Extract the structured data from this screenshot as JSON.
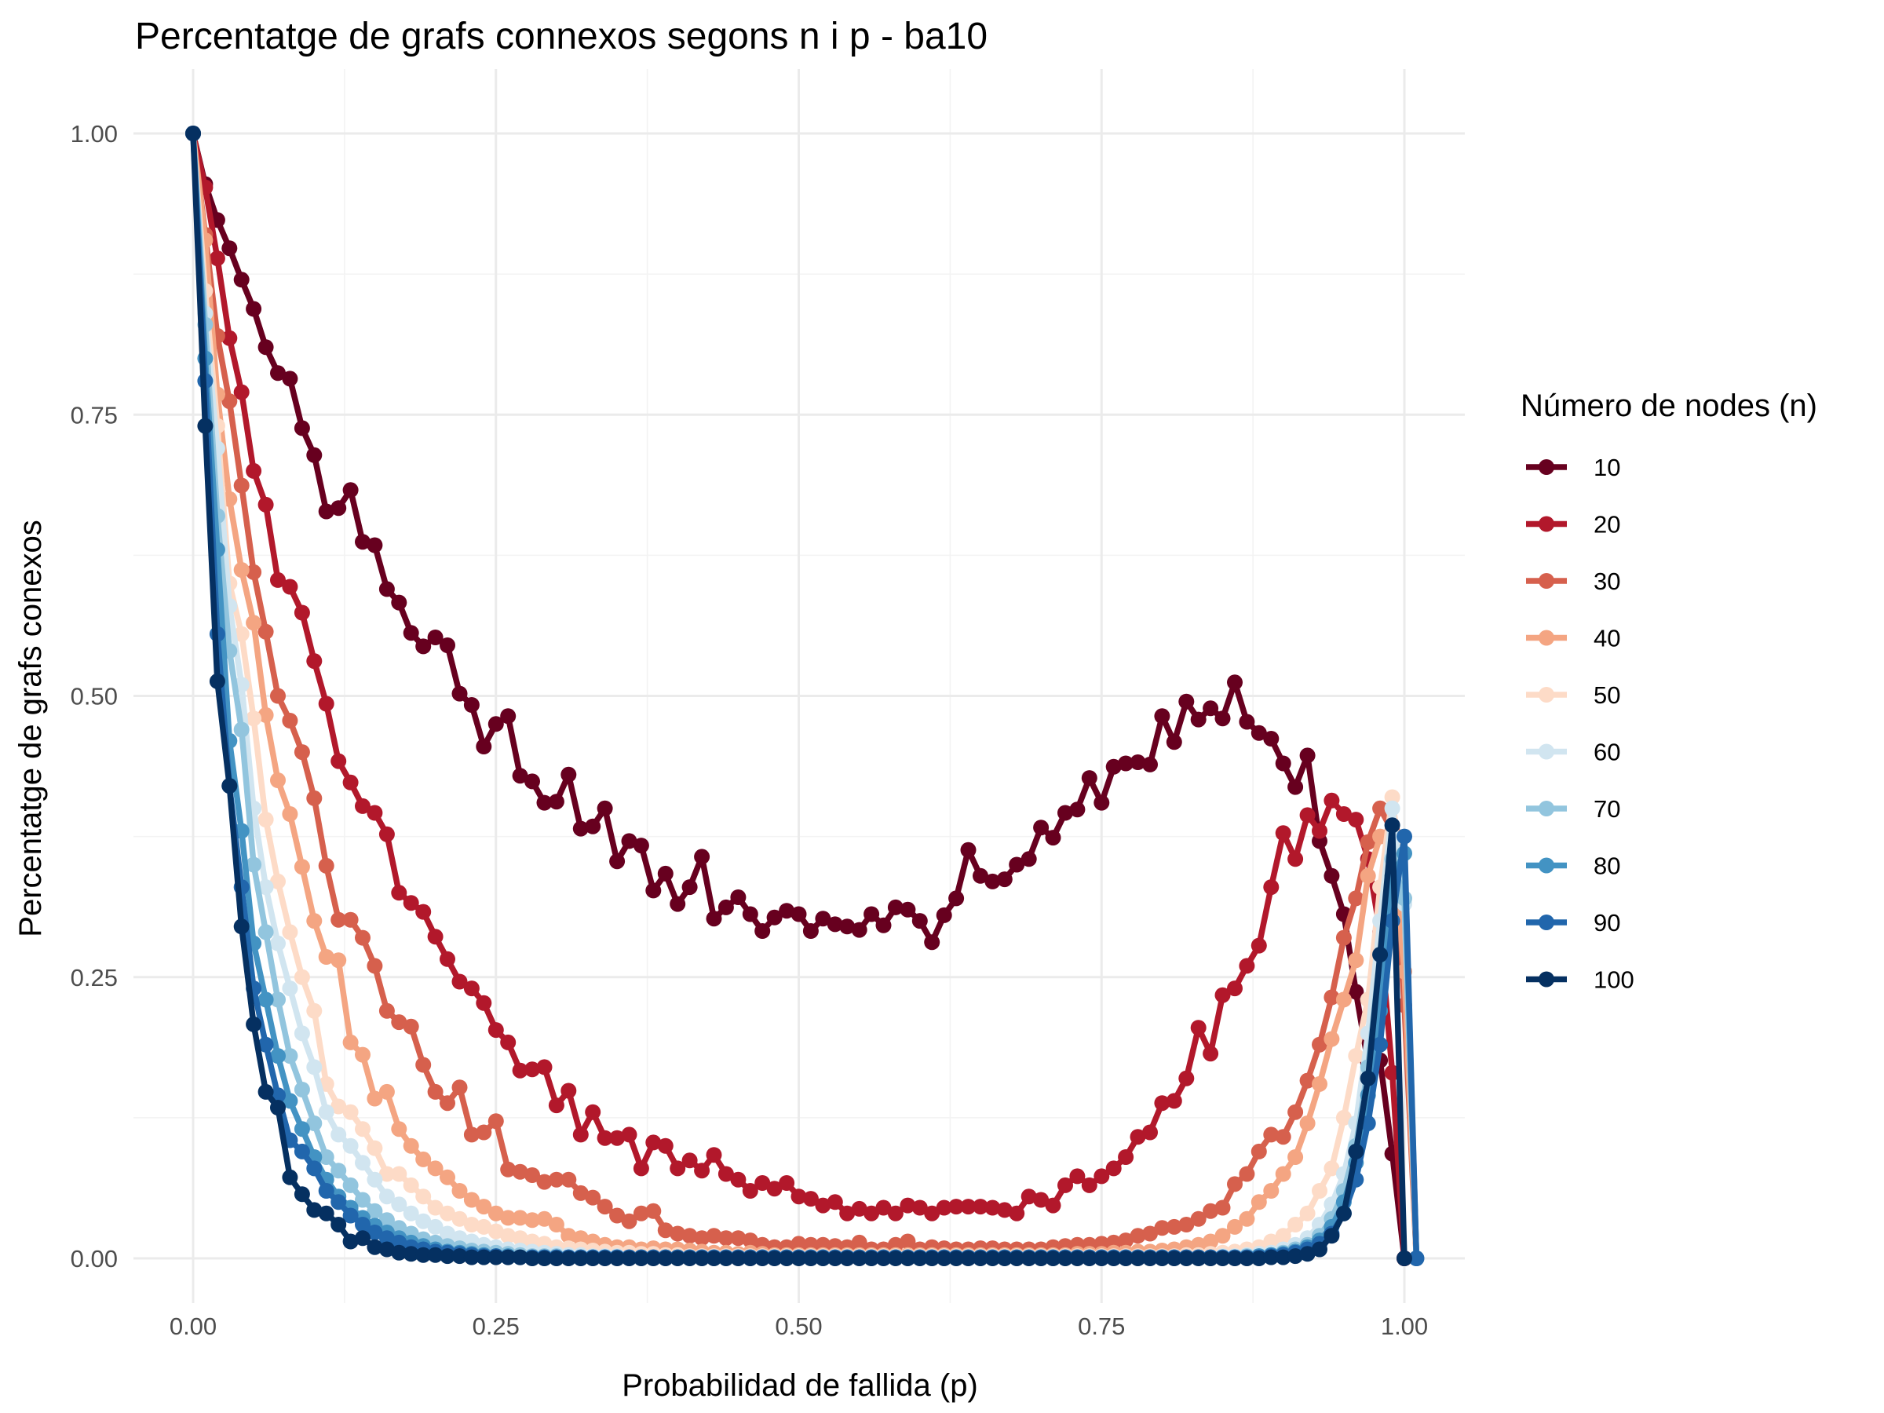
{
  "chart_data": {
    "type": "line",
    "title": "Percentatge de grafs connexos segons n i p - ba10",
    "xlabel": "Probabilidad de fallida (p)",
    "ylabel": "Percentatge de grafs conexos",
    "xlim": [
      0,
      1
    ],
    "ylim": [
      0,
      1
    ],
    "x_ticks": [
      "0.00",
      "0.25",
      "0.50",
      "0.75",
      "1.00"
    ],
    "y_ticks": [
      "0.00",
      "0.25",
      "0.50",
      "0.75",
      "1.00"
    ],
    "grid": true,
    "legend": {
      "title": "Número de nodes (n)",
      "position": "right"
    },
    "x_step": 0.01,
    "series": [
      {
        "name": "10",
        "color": "#67001f",
        "values": [
          1.0,
          0.955,
          0.923,
          0.898,
          0.87,
          0.844,
          0.81,
          0.787,
          0.782,
          0.738,
          0.714,
          0.664,
          0.667,
          0.683,
          0.637,
          0.634,
          0.595,
          0.583,
          0.556,
          0.544,
          0.552,
          0.545,
          0.502,
          0.492,
          0.455,
          0.475,
          0.482,
          0.429,
          0.424,
          0.405,
          0.406,
          0.43,
          0.382,
          0.384,
          0.4,
          0.353,
          0.371,
          0.367,
          0.327,
          0.342,
          0.315,
          0.33,
          0.357,
          0.302,
          0.312,
          0.321,
          0.306,
          0.291,
          0.303,
          0.309,
          0.306,
          0.291,
          0.302,
          0.297,
          0.295,
          0.292,
          0.306,
          0.296,
          0.312,
          0.31,
          0.3,
          0.281,
          0.305,
          0.32,
          0.363,
          0.34,
          0.335,
          0.337,
          0.35,
          0.355,
          0.383,
          0.374,
          0.396,
          0.399,
          0.427,
          0.405,
          0.437,
          0.44,
          0.441,
          0.439,
          0.482,
          0.459,
          0.495,
          0.479,
          0.489,
          0.48,
          0.512,
          0.477,
          0.467,
          0.462,
          0.44,
          0.419,
          0.447,
          0.371,
          0.34,
          0.306,
          0.237,
          0.174,
          0.176,
          0.093,
          0.0
        ]
      },
      {
        "name": "20",
        "color": "#b2182b",
        "values": [
          1.0,
          0.952,
          0.889,
          0.818,
          0.77,
          0.7,
          0.67,
          0.603,
          0.597,
          0.574,
          0.531,
          0.493,
          0.442,
          0.423,
          0.402,
          0.396,
          0.377,
          0.325,
          0.316,
          0.308,
          0.286,
          0.266,
          0.246,
          0.24,
          0.227,
          0.203,
          0.192,
          0.167,
          0.168,
          0.17,
          0.136,
          0.149,
          0.11,
          0.13,
          0.107,
          0.107,
          0.11,
          0.08,
          0.103,
          0.1,
          0.08,
          0.087,
          0.078,
          0.092,
          0.075,
          0.07,
          0.06,
          0.067,
          0.062,
          0.067,
          0.055,
          0.053,
          0.047,
          0.05,
          0.04,
          0.044,
          0.04,
          0.045,
          0.04,
          0.047,
          0.045,
          0.04,
          0.045,
          0.046,
          0.046,
          0.046,
          0.045,
          0.043,
          0.04,
          0.055,
          0.052,
          0.047,
          0.065,
          0.073,
          0.065,
          0.073,
          0.08,
          0.09,
          0.108,
          0.112,
          0.138,
          0.14,
          0.16,
          0.205,
          0.182,
          0.234,
          0.24,
          0.26,
          0.278,
          0.33,
          0.378,
          0.355,
          0.394,
          0.38,
          0.407,
          0.395,
          0.39,
          0.355,
          0.29,
          0.165,
          0.0
        ]
      },
      {
        "name": "30",
        "color": "#d6604d",
        "values": [
          1.0,
          0.91,
          0.82,
          0.762,
          0.687,
          0.61,
          0.557,
          0.5,
          0.478,
          0.45,
          0.409,
          0.349,
          0.301,
          0.301,
          0.285,
          0.26,
          0.22,
          0.21,
          0.206,
          0.172,
          0.148,
          0.138,
          0.152,
          0.11,
          0.112,
          0.122,
          0.079,
          0.077,
          0.074,
          0.068,
          0.07,
          0.07,
          0.058,
          0.054,
          0.046,
          0.038,
          0.033,
          0.04,
          0.042,
          0.025,
          0.022,
          0.02,
          0.018,
          0.02,
          0.018,
          0.018,
          0.016,
          0.012,
          0.01,
          0.01,
          0.013,
          0.012,
          0.012,
          0.011,
          0.01,
          0.014,
          0.008,
          0.008,
          0.012,
          0.015,
          0.008,
          0.01,
          0.009,
          0.008,
          0.008,
          0.009,
          0.009,
          0.008,
          0.008,
          0.008,
          0.008,
          0.01,
          0.011,
          0.012,
          0.012,
          0.013,
          0.014,
          0.016,
          0.02,
          0.022,
          0.027,
          0.028,
          0.03,
          0.035,
          0.042,
          0.045,
          0.066,
          0.075,
          0.095,
          0.11,
          0.108,
          0.13,
          0.158,
          0.19,
          0.232,
          0.285,
          0.32,
          0.37,
          0.4,
          0.38,
          0.225,
          0.0
        ]
      },
      {
        "name": "40",
        "color": "#f4a582",
        "values": [
          1.0,
          0.905,
          0.768,
          0.675,
          0.612,
          0.565,
          0.483,
          0.425,
          0.395,
          0.348,
          0.3,
          0.268,
          0.265,
          0.192,
          0.181,
          0.142,
          0.148,
          0.115,
          0.1,
          0.088,
          0.08,
          0.072,
          0.06,
          0.052,
          0.046,
          0.04,
          0.036,
          0.036,
          0.034,
          0.035,
          0.03,
          0.02,
          0.018,
          0.015,
          0.012,
          0.01,
          0.01,
          0.008,
          0.009,
          0.008,
          0.008,
          0.007,
          0.006,
          0.005,
          0.005,
          0.004,
          0.005,
          0.004,
          0.003,
          0.003,
          0.003,
          0.003,
          0.003,
          0.003,
          0.003,
          0.003,
          0.003,
          0.003,
          0.003,
          0.003,
          0.003,
          0.003,
          0.003,
          0.003,
          0.003,
          0.003,
          0.003,
          0.003,
          0.003,
          0.003,
          0.003,
          0.003,
          0.003,
          0.004,
          0.004,
          0.004,
          0.005,
          0.005,
          0.006,
          0.006,
          0.007,
          0.008,
          0.01,
          0.012,
          0.015,
          0.02,
          0.028,
          0.035,
          0.05,
          0.06,
          0.075,
          0.09,
          0.12,
          0.155,
          0.195,
          0.23,
          0.265,
          0.34,
          0.375,
          0.37,
          0.255,
          0.0
        ]
      },
      {
        "name": "50",
        "color": "#fddbc7",
        "values": [
          1.0,
          0.86,
          0.74,
          0.6,
          0.555,
          0.48,
          0.39,
          0.335,
          0.29,
          0.25,
          0.22,
          0.155,
          0.135,
          0.13,
          0.115,
          0.098,
          0.075,
          0.075,
          0.065,
          0.055,
          0.045,
          0.04,
          0.035,
          0.03,
          0.028,
          0.024,
          0.02,
          0.018,
          0.015,
          0.013,
          0.01,
          0.009,
          0.008,
          0.007,
          0.006,
          0.005,
          0.005,
          0.004,
          0.004,
          0.003,
          0.003,
          0.002,
          0.002,
          0.002,
          0.002,
          0.002,
          0.002,
          0.002,
          0.002,
          0.002,
          0.002,
          0.002,
          0.002,
          0.002,
          0.002,
          0.002,
          0.002,
          0.002,
          0.002,
          0.002,
          0.002,
          0.002,
          0.002,
          0.002,
          0.002,
          0.002,
          0.002,
          0.002,
          0.002,
          0.002,
          0.002,
          0.002,
          0.002,
          0.002,
          0.002,
          0.002,
          0.002,
          0.002,
          0.002,
          0.002,
          0.002,
          0.002,
          0.003,
          0.003,
          0.004,
          0.005,
          0.006,
          0.008,
          0.01,
          0.015,
          0.02,
          0.03,
          0.04,
          0.06,
          0.08,
          0.125,
          0.18,
          0.23,
          0.33,
          0.41,
          0.32,
          0.0
        ]
      },
      {
        "name": "60",
        "color": "#d1e5f0",
        "values": [
          1.0,
          0.84,
          0.72,
          0.58,
          0.51,
          0.4,
          0.33,
          0.28,
          0.24,
          0.2,
          0.17,
          0.13,
          0.11,
          0.1,
          0.085,
          0.07,
          0.055,
          0.048,
          0.04,
          0.033,
          0.028,
          0.022,
          0.018,
          0.015,
          0.012,
          0.01,
          0.008,
          0.007,
          0.006,
          0.005,
          0.004,
          0.003,
          0.003,
          0.002,
          0.002,
          0.002,
          0.001,
          0.001,
          0.001,
          0.001,
          0.001,
          0.001,
          0.001,
          0.001,
          0.001,
          0.001,
          0.001,
          0.001,
          0.001,
          0.001,
          0.001,
          0.001,
          0.001,
          0.001,
          0.001,
          0.001,
          0.001,
          0.001,
          0.001,
          0.001,
          0.001,
          0.001,
          0.001,
          0.001,
          0.001,
          0.001,
          0.001,
          0.001,
          0.001,
          0.001,
          0.001,
          0.001,
          0.001,
          0.001,
          0.001,
          0.001,
          0.001,
          0.001,
          0.001,
          0.001,
          0.001,
          0.001,
          0.001,
          0.001,
          0.001,
          0.002,
          0.002,
          0.003,
          0.004,
          0.005,
          0.008,
          0.012,
          0.018,
          0.03,
          0.048,
          0.075,
          0.12,
          0.2,
          0.3,
          0.4,
          0.315,
          0.0
        ]
      },
      {
        "name": "70",
        "color": "#92c5de",
        "values": [
          1.0,
          0.83,
          0.66,
          0.54,
          0.47,
          0.35,
          0.29,
          0.23,
          0.18,
          0.15,
          0.12,
          0.09,
          0.078,
          0.065,
          0.052,
          0.042,
          0.034,
          0.027,
          0.022,
          0.017,
          0.014,
          0.011,
          0.009,
          0.007,
          0.006,
          0.005,
          0.004,
          0.003,
          0.002,
          0.002,
          0.002,
          0.001,
          0.001,
          0.001,
          0.001,
          0.001,
          0.001,
          0.001,
          0.001,
          0.001,
          0.001,
          0.001,
          0.001,
          0.001,
          0.001,
          0.001,
          0.001,
          0.001,
          0.001,
          0.001,
          0.001,
          0.001,
          0.001,
          0.001,
          0.001,
          0.001,
          0.001,
          0.001,
          0.001,
          0.001,
          0.001,
          0.001,
          0.001,
          0.001,
          0.001,
          0.001,
          0.001,
          0.001,
          0.001,
          0.001,
          0.001,
          0.001,
          0.001,
          0.001,
          0.001,
          0.001,
          0.001,
          0.001,
          0.001,
          0.001,
          0.001,
          0.001,
          0.001,
          0.001,
          0.001,
          0.001,
          0.001,
          0.002,
          0.002,
          0.003,
          0.005,
          0.008,
          0.012,
          0.02,
          0.035,
          0.06,
          0.1,
          0.17,
          0.27,
          0.355,
          0.32,
          0.0
        ]
      },
      {
        "name": "80",
        "color": "#4393c3",
        "values": [
          1.0,
          0.8,
          0.63,
          0.46,
          0.38,
          0.28,
          0.23,
          0.18,
          0.14,
          0.115,
          0.09,
          0.07,
          0.055,
          0.045,
          0.036,
          0.029,
          0.023,
          0.018,
          0.014,
          0.011,
          0.008,
          0.006,
          0.005,
          0.004,
          0.003,
          0.002,
          0.002,
          0.001,
          0.001,
          0.001,
          0.001,
          0.001,
          0.001,
          0.001,
          0.001,
          0.001,
          0.001,
          0.001,
          0.001,
          0.001,
          0.001,
          0.001,
          0.001,
          0.001,
          0.001,
          0.001,
          0.001,
          0.001,
          0.001,
          0.001,
          0.001,
          0.001,
          0.001,
          0.001,
          0.001,
          0.001,
          0.001,
          0.001,
          0.001,
          0.001,
          0.001,
          0.001,
          0.001,
          0.001,
          0.001,
          0.001,
          0.001,
          0.001,
          0.001,
          0.001,
          0.001,
          0.001,
          0.001,
          0.001,
          0.001,
          0.001,
          0.001,
          0.001,
          0.001,
          0.001,
          0.001,
          0.001,
          0.001,
          0.001,
          0.001,
          0.001,
          0.001,
          0.001,
          0.002,
          0.003,
          0.004,
          0.006,
          0.01,
          0.016,
          0.028,
          0.05,
          0.085,
          0.145,
          0.22,
          0.34,
          0.36,
          0.0
        ]
      },
      {
        "name": "90",
        "color": "#2166ac",
        "values": [
          1.0,
          0.78,
          0.555,
          0.42,
          0.33,
          0.24,
          0.19,
          0.145,
          0.105,
          0.095,
          0.08,
          0.06,
          0.05,
          0.038,
          0.03,
          0.023,
          0.018,
          0.014,
          0.01,
          0.008,
          0.006,
          0.005,
          0.004,
          0.003,
          0.002,
          0.002,
          0.001,
          0.001,
          0.001,
          0.001,
          0.001,
          0.001,
          0.001,
          0.001,
          0.001,
          0.001,
          0.001,
          0.001,
          0.001,
          0.001,
          0.001,
          0.001,
          0.001,
          0.001,
          0.001,
          0.001,
          0.001,
          0.001,
          0.001,
          0.001,
          0.001,
          0.001,
          0.001,
          0.001,
          0.001,
          0.001,
          0.001,
          0.001,
          0.001,
          0.001,
          0.001,
          0.001,
          0.001,
          0.001,
          0.001,
          0.001,
          0.001,
          0.001,
          0.001,
          0.001,
          0.001,
          0.001,
          0.001,
          0.001,
          0.001,
          0.001,
          0.001,
          0.001,
          0.001,
          0.001,
          0.001,
          0.001,
          0.001,
          0.001,
          0.001,
          0.001,
          0.001,
          0.001,
          0.001,
          0.002,
          0.003,
          0.005,
          0.008,
          0.013,
          0.022,
          0.04,
          0.07,
          0.12,
          0.19,
          0.3,
          0.375,
          0.0
        ]
      },
      {
        "name": "100",
        "color": "#053061",
        "values": [
          1.0,
          0.74,
          0.513,
          0.42,
          0.295,
          0.208,
          0.148,
          0.134,
          0.072,
          0.057,
          0.043,
          0.04,
          0.03,
          0.015,
          0.018,
          0.01,
          0.008,
          0.005,
          0.004,
          0.003,
          0.003,
          0.002,
          0.002,
          0.001,
          0.001,
          0.001,
          0.001,
          0.001,
          0.0,
          0.0,
          0.0,
          0.0,
          0.0,
          0.0,
          0.0,
          0.0,
          0.0,
          0.0,
          0.0,
          0.0,
          0.0,
          0.0,
          0.0,
          0.0,
          0.0,
          0.0,
          0.0,
          0.0,
          0.0,
          0.0,
          0.0,
          0.0,
          0.0,
          0.0,
          0.0,
          0.0,
          0.0,
          0.0,
          0.0,
          0.0,
          0.0,
          0.0,
          0.0,
          0.0,
          0.0,
          0.0,
          0.0,
          0.0,
          0.0,
          0.0,
          0.0,
          0.0,
          0.0,
          0.0,
          0.0,
          0.0,
          0.0,
          0.0,
          0.0,
          0.0,
          0.0,
          0.0,
          0.0,
          0.0,
          0.0,
          0.0,
          0.0,
          0.0,
          0.0,
          0.001,
          0.001,
          0.002,
          0.004,
          0.008,
          0.02,
          0.04,
          0.095,
          0.16,
          0.27,
          0.385,
          0.0
        ]
      }
    ]
  }
}
